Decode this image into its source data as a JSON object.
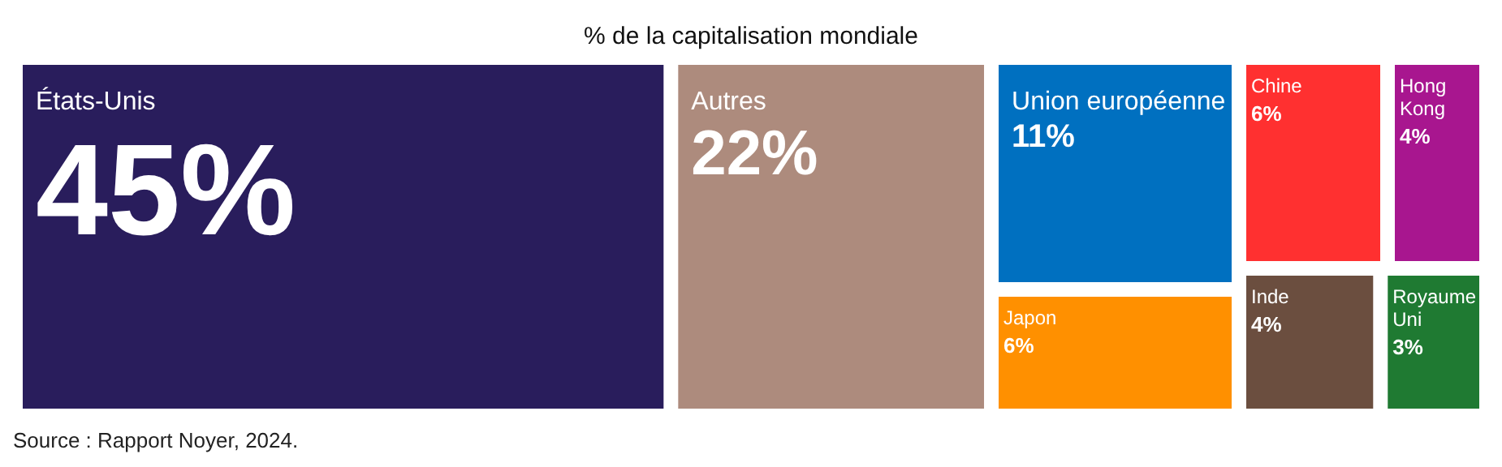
{
  "chart_data": {
    "type": "other",
    "title": "% de la capitalisation mondiale",
    "categories": [
      "États-Unis",
      "Autres",
      "Union européenne",
      "Chine",
      "Japon",
      "Inde",
      "Hong Kong",
      "Royaume Uni"
    ],
    "values": [
      45,
      22,
      11,
      6,
      6,
      4,
      4,
      3
    ],
    "value_labels": [
      "45%",
      "22%",
      "11%",
      "6%",
      "6%",
      "4%",
      "4%",
      "3%"
    ],
    "colors": [
      "#291d5c",
      "#ad8b7d",
      "#0070c0",
      "#ff3030",
      "#ff9000",
      "#6b4e3f",
      "#a8168f",
      "#1f7a32"
    ],
    "annotations": [
      "Source : Rapport Noyer, 2024."
    ]
  }
}
